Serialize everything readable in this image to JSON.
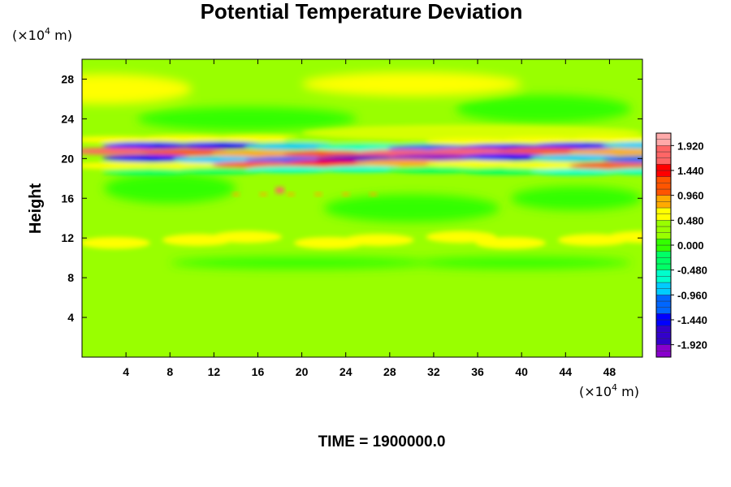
{
  "chart_data": {
    "type": "heatmap",
    "title": "Potential Temperature Deviation",
    "ylabel": "Height",
    "x_unit": {
      "prefix": "(×10",
      "exp": "4",
      "suffix": " m)"
    },
    "y_unit": {
      "prefix": "(×10",
      "exp": "4",
      "suffix": " m)"
    },
    "xlim": [
      0,
      51
    ],
    "ylim": [
      0,
      30
    ],
    "x_ticks": [
      "4",
      "8",
      "12",
      "16",
      "20",
      "24",
      "28",
      "32",
      "36",
      "40",
      "44",
      "48"
    ],
    "x_tick_values": [
      4,
      8,
      12,
      16,
      20,
      24,
      28,
      32,
      36,
      40,
      44,
      48
    ],
    "y_ticks": [
      "4",
      "8",
      "12",
      "16",
      "20",
      "24",
      "28"
    ],
    "y_tick_values": [
      4,
      8,
      12,
      16,
      20,
      24,
      28
    ],
    "colorbar": {
      "range": [
        -2.16,
        2.16
      ],
      "labels": [
        "1.920",
        "1.440",
        "0.960",
        "0.480",
        "0.000",
        "-0.480",
        "-0.960",
        "-1.440",
        "-1.920"
      ],
      "label_values": [
        1.92,
        1.44,
        0.96,
        0.48,
        0.0,
        -0.48,
        -0.96,
        -1.44,
        -1.92
      ],
      "colors": [
        "#8800cc",
        "#3300cc",
        "#0000ff",
        "#0066ff",
        "#00ccff",
        "#00ffcc",
        "#00ff66",
        "#33ff00",
        "#99ff00",
        "#ffff00",
        "#ffaa00",
        "#ff5500",
        "#ff0000",
        "#ff6666",
        "#ffaaaa"
      ]
    },
    "background_value": 0.2,
    "features": [
      {
        "name": "upper-band",
        "x_start": 0,
        "x_end": 51,
        "y_center": 20.3,
        "thickness": 2.8,
        "amplitude": 1.9
      },
      {
        "name": "upper-weak-band",
        "x_start": 20,
        "x_end": 51,
        "y_center": 22.6,
        "thickness": 1.6,
        "amplitude": 0.5
      },
      {
        "name": "spot",
        "x": 18,
        "y": 16.8,
        "amplitude": 1.6
      },
      {
        "name": "mid-band",
        "x_start": 0,
        "x_end": 51,
        "y_center": 11.8,
        "thickness": 1.2,
        "amplitude": 0.5
      }
    ],
    "time_label": "TIME = 1900000.0"
  }
}
